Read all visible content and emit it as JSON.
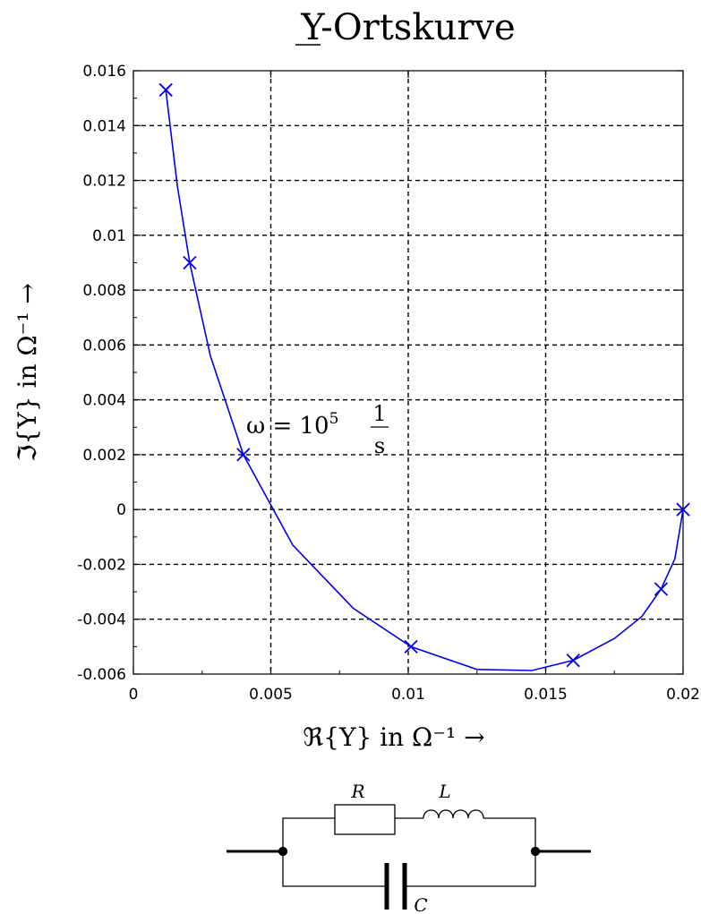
{
  "chart_data": {
    "type": "line",
    "title": "Y-Ortskurve",
    "title_underlined": "Y",
    "title_rest": "-Ortskurve",
    "xlabel": "ℜ{Y} in Ω⁻¹ →",
    "ylabel": "ℑ{Y} in Ω⁻¹ →",
    "xlim": [
      0,
      0.02
    ],
    "ylim": [
      -0.006,
      0.016
    ],
    "x_ticks": [
      "0",
      "0.005",
      "0.01",
      "0.015",
      "0.02"
    ],
    "x_tick_values": [
      0,
      0.005,
      0.01,
      0.015,
      0.02
    ],
    "y_ticks": [
      "0.016",
      "0.014",
      "0.012",
      "0.01",
      "0.008",
      "0.006",
      "0.004",
      "0.002",
      "0",
      "-0.002",
      "-0.004",
      "-0.006"
    ],
    "y_tick_values": [
      0.016,
      0.014,
      0.012,
      0.01,
      0.008,
      0.006,
      0.004,
      0.002,
      0,
      -0.002,
      -0.004,
      -0.006
    ],
    "grid": true,
    "color": "#0000ee",
    "series": [
      {
        "x": [
          0.00118,
          0.0016,
          0.00205,
          0.0028,
          0.004,
          0.0058,
          0.008,
          0.0101,
          0.0125,
          0.0145,
          0.016,
          0.0175,
          0.0185,
          0.0192,
          0.0197,
          0.02
        ],
        "y": [
          0.0153,
          0.0118,
          0.009,
          0.0056,
          0.002,
          -0.0013,
          -0.0036,
          -0.005,
          -0.00583,
          -0.00587,
          -0.0055,
          -0.0047,
          -0.0039,
          -0.0029,
          -0.0018,
          0
        ]
      }
    ],
    "markers": {
      "x": [
        0.00118,
        0.00205,
        0.004,
        0.0101,
        0.016,
        0.0192,
        0.02
      ],
      "y": [
        0.0153,
        0.009,
        0.002,
        -0.005,
        -0.0055,
        -0.0029,
        0
      ]
    },
    "annotation": {
      "lhs": "ω = 10",
      "exponent": "5",
      "fraction_numerator": "1",
      "fraction_denominator": "s",
      "x": 0.0042,
      "y": 0.0027
    }
  },
  "circuit": {
    "label_r": "R",
    "label_l": "L",
    "label_c": "C"
  }
}
